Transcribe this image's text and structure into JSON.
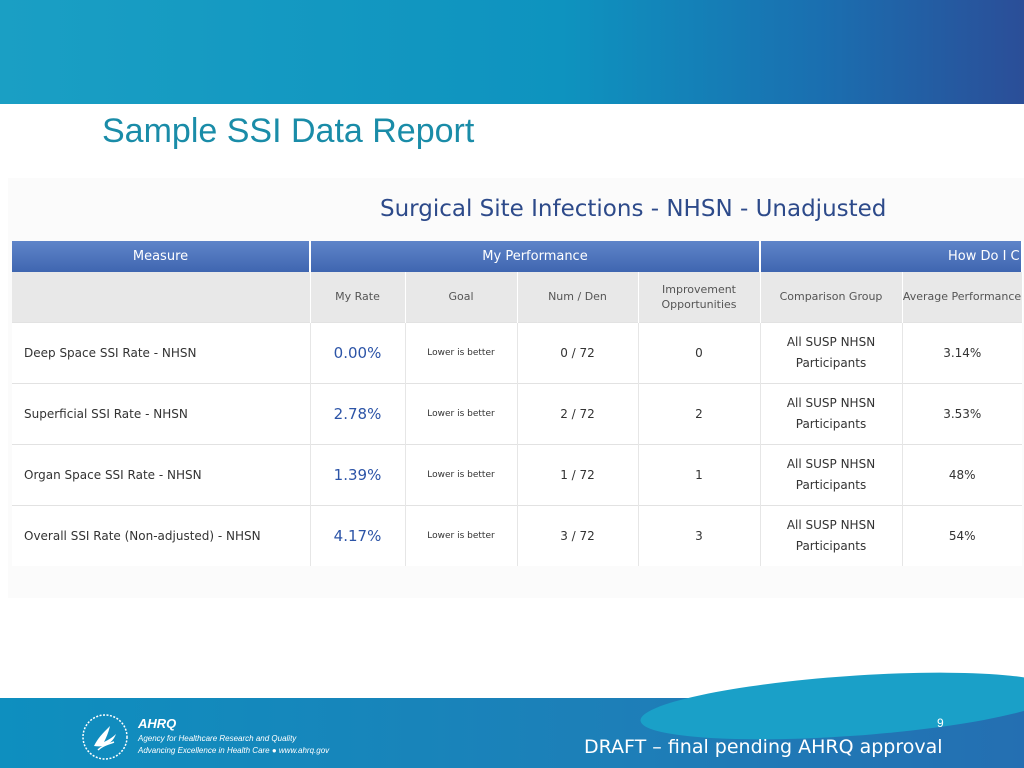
{
  "slide": {
    "title": "Sample SSI Data Report",
    "page_number": "9",
    "draft_note": "DRAFT – final pending AHRQ approval"
  },
  "report": {
    "title": "Surgical Site Infections - NHSN - Unadjusted",
    "group_headers": [
      "Measure",
      "My Performance",
      "How Do I C"
    ],
    "columns": [
      "My Rate",
      "Goal",
      "Num / Den",
      "Improvement Opportunities",
      "Comparison Group",
      "Average Performance"
    ],
    "rows": [
      {
        "measure": "Deep Space SSI Rate - NHSN",
        "rate": "0.00%",
        "goal": "Lower is better",
        "num_den": "0 / 72",
        "improvement": "0",
        "comparison": "All SUSP NHSN Participants",
        "average": "3.14%"
      },
      {
        "measure": "Superficial SSI Rate - NHSN",
        "rate": "2.78%",
        "goal": "Lower is better",
        "num_den": "2 / 72",
        "improvement": "2",
        "comparison": "All SUSP NHSN Participants",
        "average": "3.53%"
      },
      {
        "measure": "Organ Space SSI Rate - NHSN",
        "rate": "1.39%",
        "goal": "Lower is better",
        "num_den": "1 / 72",
        "improvement": "1",
        "comparison": "All SUSP NHSN Participants",
        "average": "48%"
      },
      {
        "measure": "Overall SSI Rate (Non-adjusted) - NHSN",
        "rate": "4.17%",
        "goal": "Lower is better",
        "num_den": "3 / 72",
        "improvement": "3",
        "comparison": "All SUSP NHSN Participants",
        "average": "54%"
      }
    ]
  },
  "footer": {
    "logo_mark": "AHRQ",
    "agency_line": "Agency for Healthcare Research and Quality",
    "tagline": "Advancing Excellence in Health Care ● www.ahrq.gov",
    "seal_icon": "hhs-eagle-seal-icon"
  },
  "colors": {
    "top_band": "#0e93bf",
    "title_teal": "#1a8ca8",
    "table_header_blue": "#4a70b8",
    "rate_blue": "#2c54a7"
  }
}
